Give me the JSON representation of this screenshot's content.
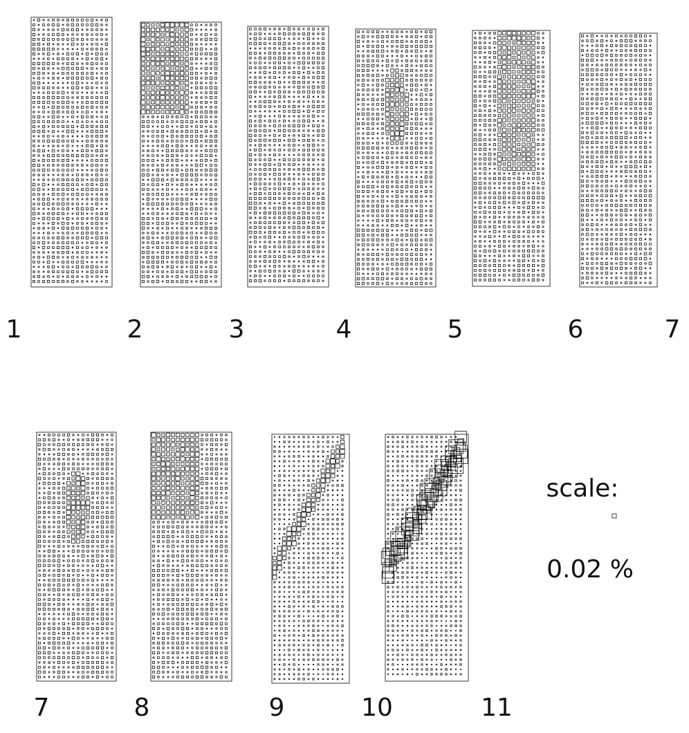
{
  "panel_labels_top": [
    "1",
    "2",
    "3",
    "4",
    "5",
    "6",
    "7"
  ],
  "panel_labels_bottom": [
    "7",
    "8",
    "9",
    "10",
    "11"
  ],
  "scale": {
    "title": "scale:",
    "value": "0.02 %"
  }
}
